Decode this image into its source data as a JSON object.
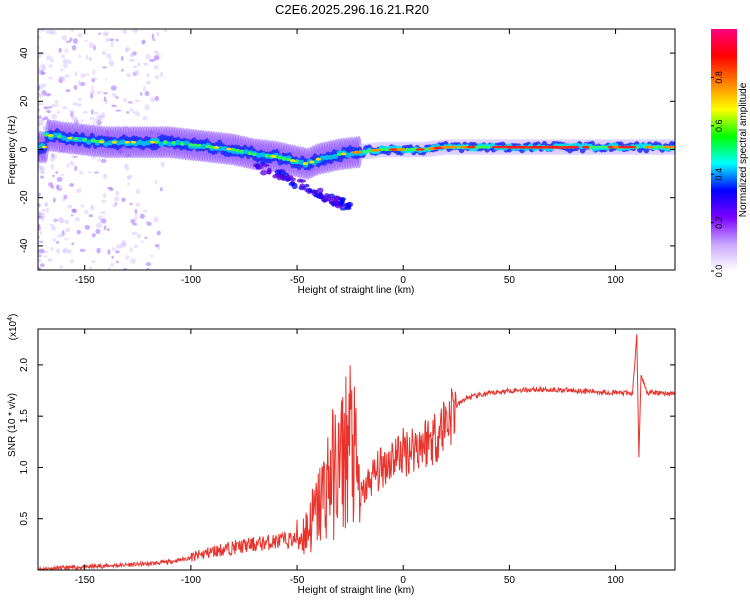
{
  "title": "C2E6.2025.296.16.21.R20",
  "chart_data": [
    {
      "type": "heatmap",
      "xlabel": "Height of straight line (km)",
      "ylabel": "Frequency (Hz)",
      "xlim": [
        -172,
        128
      ],
      "ylim": [
        -50,
        50
      ],
      "x_ticks": [
        -150,
        -100,
        -50,
        0,
        50,
        100
      ],
      "x_tick_labels": [
        "-150",
        "-100",
        "-50",
        "0",
        "50",
        "100"
      ],
      "y_ticks": [
        -40,
        -20,
        0,
        20,
        40
      ],
      "y_tick_labels": [
        "-40",
        "-20",
        "0",
        "20",
        "40"
      ],
      "grid": false,
      "ridge": [
        {
          "x": -168,
          "y": 6
        },
        {
          "x": -160,
          "y": 5
        },
        {
          "x": -150,
          "y": 4
        },
        {
          "x": -140,
          "y": 3
        },
        {
          "x": -130,
          "y": 3
        },
        {
          "x": -120,
          "y": 3
        },
        {
          "x": -110,
          "y": 3
        },
        {
          "x": -100,
          "y": 2
        },
        {
          "x": -90,
          "y": 1
        },
        {
          "x": -80,
          "y": 0
        },
        {
          "x": -70,
          "y": -2
        },
        {
          "x": -60,
          "y": -3
        },
        {
          "x": -50,
          "y": -5
        },
        {
          "x": -45,
          "y": -6
        },
        {
          "x": -40,
          "y": -4
        },
        {
          "x": -30,
          "y": -2
        },
        {
          "x": -20,
          "y": -1
        },
        {
          "x": -10,
          "y": 0
        },
        {
          "x": 0,
          "y": 0
        },
        {
          "x": 10,
          "y": 0
        },
        {
          "x": 20,
          "y": 1
        },
        {
          "x": 30,
          "y": 1
        },
        {
          "x": 40,
          "y": 1
        },
        {
          "x": 50,
          "y": 1
        },
        {
          "x": 60,
          "y": 1
        },
        {
          "x": 70,
          "y": 1
        },
        {
          "x": 80,
          "y": 1
        },
        {
          "x": 90,
          "y": 1
        },
        {
          "x": 100,
          "y": 1
        },
        {
          "x": 110,
          "y": 1
        },
        {
          "x": 125,
          "y": 1
        }
      ],
      "colorbar": {
        "label": "Normalized spectral amplitude",
        "range": [
          0.0,
          1.0
        ],
        "ticks": [
          0.0,
          0.2,
          0.4,
          0.6,
          0.8
        ],
        "tick_labels": [
          "0.0",
          "0.2",
          "0.4",
          "0.6",
          "0.8"
        ],
        "colors": [
          "#ffffff",
          "#c8a6ff",
          "#7a00ff",
          "#0000ff",
          "#00ffff",
          "#00ff00",
          "#ffff00",
          "#ff8000",
          "#ff0000",
          "#ff0080"
        ]
      }
    },
    {
      "type": "line",
      "xlabel": "Height of straight line (km)",
      "ylabel": "SNR (10 * v/v)",
      "scale_label": "(x10",
      "scale_exponent": "4",
      "xlim": [
        -172,
        128
      ],
      "ylim": [
        0,
        2.35
      ],
      "x_ticks": [
        -150,
        -100,
        -50,
        0,
        50,
        100
      ],
      "x_tick_labels": [
        "-150",
        "-100",
        "-50",
        "0",
        "50",
        "100"
      ],
      "y_ticks": [
        0.5,
        1.0,
        1.5,
        2.0
      ],
      "y_tick_labels": [
        "0.5",
        "1.0",
        "1.5",
        "2.0"
      ],
      "color": "#e8322c",
      "series": [
        {
          "name": "SNR",
          "points": [
            [
              -172,
              0.01
            ],
            [
              -160,
              0.02
            ],
            [
              -150,
              0.03
            ],
            [
              -140,
              0.04
            ],
            [
              -130,
              0.05
            ],
            [
              -120,
              0.06
            ],
            [
              -110,
              0.08
            ],
            [
              -100,
              0.12
            ],
            [
              -90,
              0.18
            ],
            [
              -80,
              0.22
            ],
            [
              -70,
              0.25
            ],
            [
              -60,
              0.28
            ],
            [
              -50,
              0.3
            ],
            [
              -45,
              0.4
            ],
            [
              -40,
              0.6
            ],
            [
              -35,
              0.9
            ],
            [
              -30,
              1.0
            ],
            [
              -25,
              1.3
            ],
            [
              -20,
              0.7
            ],
            [
              -15,
              0.9
            ],
            [
              -10,
              1.0
            ],
            [
              -5,
              1.1
            ],
            [
              0,
              1.15
            ],
            [
              5,
              1.2
            ],
            [
              10,
              1.25
            ],
            [
              15,
              1.3
            ],
            [
              20,
              1.45
            ],
            [
              25,
              1.6
            ],
            [
              30,
              1.68
            ],
            [
              40,
              1.72
            ],
            [
              50,
              1.75
            ],
            [
              60,
              1.76
            ],
            [
              70,
              1.76
            ],
            [
              80,
              1.75
            ],
            [
              90,
              1.74
            ],
            [
              100,
              1.73
            ],
            [
              108,
              1.72
            ],
            [
              110,
              2.3
            ],
            [
              111,
              1.1
            ],
            [
              112,
              1.9
            ],
            [
              115,
              1.73
            ],
            [
              128,
              1.72
            ]
          ]
        }
      ]
    }
  ]
}
